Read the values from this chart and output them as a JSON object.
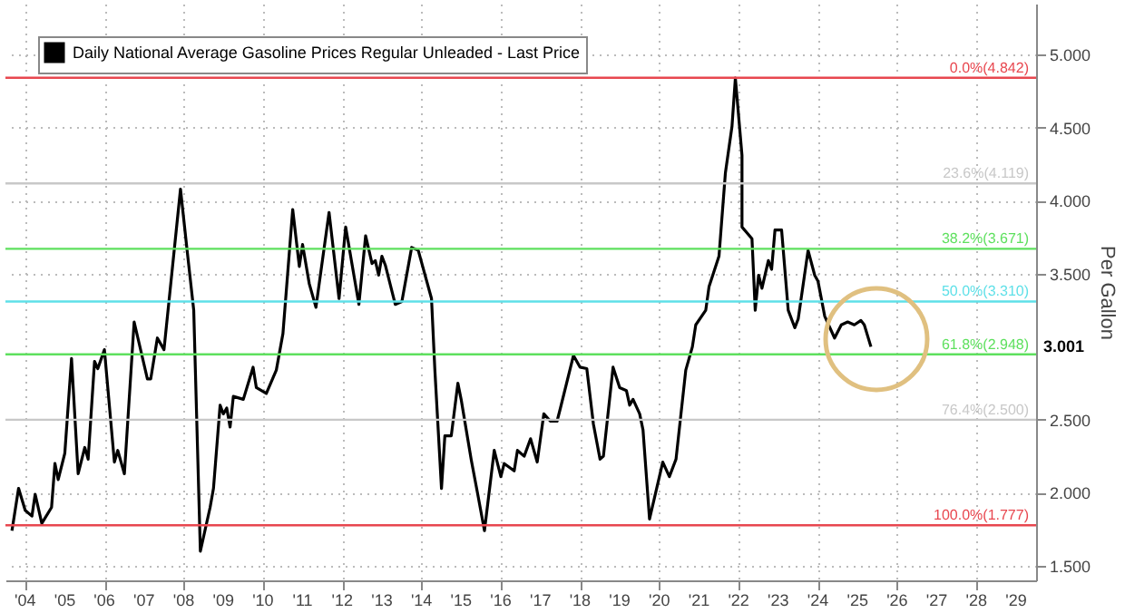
{
  "chart_data": {
    "type": "line",
    "ylabel": "Per Gallon",
    "legend": "top left",
    "grid": true,
    "line_style": "solid",
    "marker": "none",
    "x": [
      "2004-03",
      "2004-05",
      "2004-07",
      "2004-09",
      "2004-10",
      "2004-12",
      "2005-03",
      "2005-04",
      "2005-05",
      "2005-07",
      "2005-09",
      "2005-11",
      "2006-01",
      "2006-02",
      "2006-04",
      "2006-05",
      "2006-07",
      "2006-10",
      "2006-11",
      "2007-01",
      "2007-04",
      "2007-08",
      "2007-09",
      "2007-11",
      "2008-01",
      "2008-06",
      "2008-08",
      "2008-10",
      "2008-12",
      "2009-03",
      "2009-04",
      "2009-06",
      "2009-07",
      "2009-08",
      "2009-09",
      "2009-10",
      "2010-01",
      "2010-04",
      "2010-05",
      "2010-08",
      "2010-11",
      "2011-01",
      "2011-04",
      "2011-06",
      "2011-07",
      "2011-09",
      "2011-11",
      "2012-03",
      "2012-06",
      "2012-08",
      "2012-12",
      "2013-02",
      "2013-04",
      "2013-05",
      "2013-06",
      "2013-07",
      "2013-08",
      "2013-11",
      "2014-01",
      "2014-04",
      "2014-06",
      "2014-10",
      "2014-11",
      "2015-01",
      "2015-02",
      "2015-04",
      "2015-06",
      "2015-07",
      "2015-10",
      "2015-12",
      "2016-02",
      "2016-05",
      "2016-07",
      "2016-08",
      "2016-11",
      "2016-12",
      "2017-02",
      "2017-04",
      "2017-06",
      "2017-08",
      "2017-10",
      "2017-12",
      "2018-01",
      "2018-05",
      "2018-07",
      "2018-09",
      "2018-11",
      "2019-01",
      "2019-02",
      "2019-05",
      "2019-07",
      "2019-09",
      "2019-10",
      "2019-11",
      "2020-01",
      "2020-02",
      "2020-04",
      "2020-07",
      "2020-08",
      "2020-10",
      "2020-12",
      "2021-03",
      "2021-05",
      "2021-06",
      "2021-09",
      "2021-10",
      "2022-01",
      "2022-03",
      "2022-05",
      "2022-06",
      "2022-08",
      "2022-08",
      "2022-11",
      "2022-12",
      "2023-01",
      "2023-02",
      "2023-04",
      "2023-05",
      "2023-06",
      "2023-08",
      "2023-10",
      "2023-12",
      "2024-01",
      "2024-04",
      "2024-06",
      "2024-07",
      "2024-09",
      "2024-12",
      "2025-02",
      "2025-04",
      "2025-06",
      "2025-08",
      "2025-09",
      "2025-11"
    ],
    "series": [
      {
        "name": "Daily National Average Gasoline Prices Regular Unleaded - Last Price",
        "color": "#000000",
        "values": [
          1.74,
          2.03,
          1.88,
          1.84,
          1.99,
          1.79,
          1.9,
          2.2,
          2.09,
          2.27,
          2.92,
          2.13,
          2.31,
          2.23,
          2.9,
          2.85,
          2.98,
          2.21,
          2.29,
          2.13,
          3.17,
          2.78,
          2.78,
          3.06,
          2.98,
          4.08,
          3.66,
          3.25,
          1.6,
          1.9,
          2.03,
          2.6,
          2.54,
          2.58,
          2.45,
          2.66,
          2.64,
          2.86,
          2.72,
          2.68,
          2.84,
          3.09,
          3.94,
          3.55,
          3.7,
          3.43,
          3.27,
          3.92,
          3.33,
          3.82,
          3.29,
          3.76,
          3.57,
          3.59,
          3.49,
          3.62,
          3.56,
          3.29,
          3.31,
          3.68,
          3.66,
          3.33,
          2.84,
          2.03,
          2.39,
          2.39,
          2.75,
          2.64,
          2.23,
          1.99,
          1.74,
          2.29,
          2.11,
          2.2,
          2.15,
          2.29,
          2.25,
          2.37,
          2.21,
          2.54,
          2.49,
          2.49,
          2.58,
          2.94,
          2.86,
          2.85,
          2.47,
          2.23,
          2.25,
          2.86,
          2.72,
          2.7,
          2.6,
          2.64,
          2.54,
          2.43,
          1.82,
          2.11,
          2.21,
          2.11,
          2.23,
          2.84,
          3.0,
          3.15,
          3.25,
          3.41,
          3.62,
          4.19,
          4.51,
          4.84,
          4.31,
          3.82,
          3.74,
          3.25,
          3.49,
          3.4,
          3.59,
          3.53,
          3.8,
          3.8,
          3.25,
          3.13,
          3.19,
          3.66,
          3.49,
          3.45,
          3.21,
          3.06,
          3.15,
          3.17,
          3.15,
          3.18,
          3.15,
          3.0
        ]
      }
    ],
    "xlim": [
      "2004-01-01",
      "2030-01-01"
    ],
    "xticks": [
      {
        "value": "2004-07-01",
        "label": "'04"
      },
      {
        "value": "2005-07-01",
        "label": "'05"
      },
      {
        "value": "2006-07-01",
        "label": "'06"
      },
      {
        "value": "2007-07-01",
        "label": "'07"
      },
      {
        "value": "2008-07-01",
        "label": "'08"
      },
      {
        "value": "2009-07-01",
        "label": "'09"
      },
      {
        "value": "2010-07-01",
        "label": "'10"
      },
      {
        "value": "2011-07-01",
        "label": "'11"
      },
      {
        "value": "2012-07-01",
        "label": "'12"
      },
      {
        "value": "2013-07-01",
        "label": "'13"
      },
      {
        "value": "2014-07-01",
        "label": "'14"
      },
      {
        "value": "2015-07-01",
        "label": "'15"
      },
      {
        "value": "2016-07-01",
        "label": "'16"
      },
      {
        "value": "2017-07-01",
        "label": "'17"
      },
      {
        "value": "2018-07-01",
        "label": "'18"
      },
      {
        "value": "2019-07-01",
        "label": "'19"
      },
      {
        "value": "2020-07-01",
        "label": "'20"
      },
      {
        "value": "2021-07-01",
        "label": "'21"
      },
      {
        "value": "2022-07-01",
        "label": "'22"
      },
      {
        "value": "2023-07-01",
        "label": "'23"
      },
      {
        "value": "2024-07-01",
        "label": "'24"
      },
      {
        "value": "2025-07-01",
        "label": "'25"
      },
      {
        "value": "2026-07-01",
        "label": "'26"
      },
      {
        "value": "2027-07-01",
        "label": "'27"
      },
      {
        "value": "2028-07-01",
        "label": "'28"
      },
      {
        "value": "2029-07-01",
        "label": "'29"
      }
    ],
    "ylim": [
      1.4,
      5.35
    ],
    "yticks": [
      {
        "value": 1.5,
        "label": "1.500"
      },
      {
        "value": 2,
        "label": "2.000"
      },
      {
        "value": 2.5,
        "label": "2.500"
      },
      {
        "value": 3.5,
        "label": "3.500"
      },
      {
        "value": 4,
        "label": "4.000"
      },
      {
        "value": 4.5,
        "label": "4.500"
      },
      {
        "value": 5,
        "label": "5.000"
      }
    ],
    "ref_lines": [
      {
        "axis": "y",
        "value": 4.842,
        "label": "0.0%(4.842)",
        "color": "#e8474f"
      },
      {
        "axis": "y",
        "value": 4.119,
        "label": "23.6%(4.119)",
        "color": "#c8c8c8"
      },
      {
        "axis": "y",
        "value": 3.671,
        "label": "38.2%(3.671)",
        "color": "#5ee05e"
      },
      {
        "axis": "y",
        "value": 3.31,
        "label": "50.0%(3.310)",
        "color": "#5fe0e8"
      },
      {
        "axis": "y",
        "value": 2.948,
        "label": "61.8%(2.948)",
        "color": "#5ee05e"
      },
      {
        "axis": "y",
        "value": 2.5,
        "label": "76.4%(2.500)",
        "color": "#c8c8c8"
      },
      {
        "axis": "y",
        "value": 1.777,
        "label": "100.0%(1.777)",
        "color": "#e8474f"
      }
    ],
    "annotations": [
      {
        "text": "3.001",
        "x": "2030-01-01",
        "y": 3.001
      }
    ]
  }
}
